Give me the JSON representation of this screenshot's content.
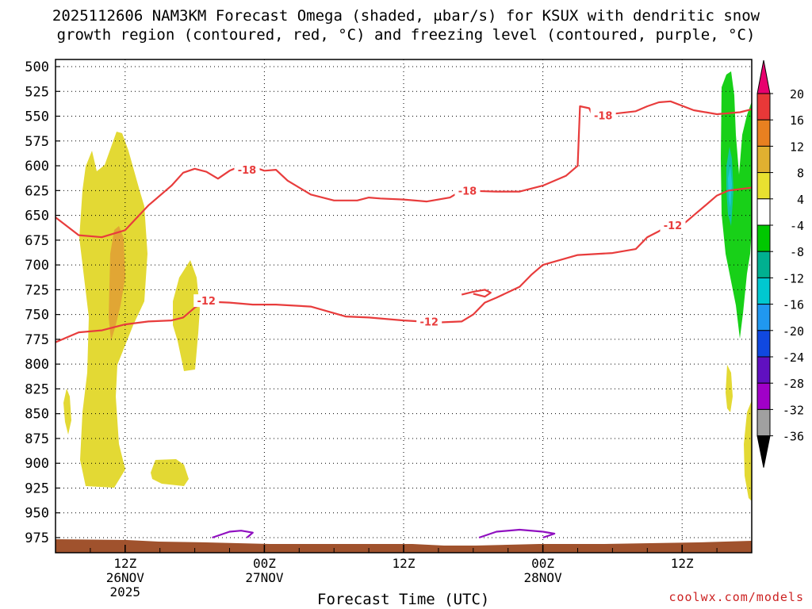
{
  "title_line1": "2025112606 NAM3KM Forecast Omega (shaded, μbar/s) for KSUX with dendritic snow",
  "title_line2": "growth region (contoured, red, °C) and freezing level (contoured, purple, °C)",
  "credit": "coolwx.com/models",
  "chart_data": {
    "type": "contour",
    "xlabel": "Forecast Time (UTC)",
    "ylabel": "",
    "x_unit": "forecast hour",
    "xlim": [
      0,
      60
    ],
    "ylim": [
      1000,
      500
    ],
    "y_scale": "pressure (hPa), inverted",
    "x_ticks": [
      {
        "hour": 6,
        "line1": "12Z",
        "line2": "26NOV",
        "line3": "2025"
      },
      {
        "hour": 18,
        "line1": "00Z",
        "line2": "27NOV",
        "line3": ""
      },
      {
        "hour": 30,
        "line1": "12Z",
        "line2": "",
        "line3": ""
      },
      {
        "hour": 42,
        "line1": "00Z",
        "line2": "28NOV",
        "line3": ""
      },
      {
        "hour": 54,
        "line1": "12Z",
        "line2": "",
        "line3": ""
      }
    ],
    "y_ticks": [
      "500",
      "525",
      "550",
      "575",
      "600",
      "625",
      "650",
      "675",
      "700",
      "725",
      "750",
      "775",
      "800",
      "825",
      "850",
      "875",
      "900",
      "925",
      "950",
      "975"
    ],
    "grid": true,
    "colorbar": {
      "labels": [
        "20",
        "16",
        "12",
        "8",
        "4",
        "-4",
        "-8",
        "-12",
        "-16",
        "-20",
        "-24",
        "-28",
        "-32",
        "-36"
      ],
      "colors": [
        "#e8006e",
        "#e83838",
        "#e88020",
        "#e0b030",
        "#e8e030",
        "#ffffff",
        "#00c800",
        "#00b090",
        "#00c8d0",
        "#2098f0",
        "#1048e0",
        "#6010c0",
        "#a000c8",
        "#a0a0a0",
        "#000000"
      ]
    },
    "contours_red": [
      {
        "label": "-18",
        "points": [
          [
            0,
            652
          ],
          [
            2,
            670
          ],
          [
            4,
            672
          ],
          [
            6,
            665
          ],
          [
            8,
            640
          ],
          [
            10,
            620
          ],
          [
            11,
            607
          ],
          [
            12,
            603
          ],
          [
            13,
            606
          ],
          [
            14,
            613
          ],
          [
            15,
            605
          ],
          [
            16,
            600
          ],
          [
            17,
            601
          ],
          [
            18,
            605
          ],
          [
            19,
            604
          ],
          [
            20,
            615
          ],
          [
            22,
            629
          ],
          [
            24,
            635
          ],
          [
            26,
            635
          ],
          [
            27,
            632
          ],
          [
            28,
            633
          ],
          [
            30,
            634
          ],
          [
            32,
            636
          ],
          [
            34,
            632
          ],
          [
            35,
            625
          ],
          [
            38,
            626
          ],
          [
            40,
            626
          ],
          [
            42,
            620
          ],
          [
            44,
            610
          ],
          [
            45,
            600
          ],
          [
            45.2,
            540
          ],
          [
            46,
            542
          ],
          [
            46.3,
            550
          ],
          [
            47,
            549
          ],
          [
            50,
            545
          ],
          [
            51,
            540
          ],
          [
            52,
            536
          ],
          [
            53,
            535
          ],
          [
            55,
            544
          ],
          [
            57,
            548
          ],
          [
            59,
            546
          ],
          [
            60,
            543
          ]
        ]
      },
      {
        "label": "-12",
        "points": [
          [
            0,
            778
          ],
          [
            2,
            768
          ],
          [
            4,
            766
          ],
          [
            6,
            760
          ],
          [
            8,
            757
          ],
          [
            10,
            756
          ],
          [
            11,
            753
          ],
          [
            12,
            743
          ],
          [
            13,
            737
          ],
          [
            15,
            738
          ],
          [
            17,
            740
          ],
          [
            19,
            740
          ],
          [
            22,
            742
          ],
          [
            25,
            752
          ],
          [
            27,
            753
          ],
          [
            30,
            756
          ],
          [
            33,
            758
          ],
          [
            35,
            757
          ],
          [
            36,
            750
          ],
          [
            37,
            738
          ],
          [
            38,
            733
          ],
          [
            40,
            722
          ],
          [
            41,
            710
          ],
          [
            42,
            700
          ],
          [
            45,
            690
          ],
          [
            48,
            688
          ],
          [
            50,
            684
          ],
          [
            51,
            672
          ],
          [
            52,
            666
          ],
          [
            52.5,
            662
          ],
          [
            53,
            660
          ],
          [
            54,
            660
          ],
          [
            55,
            650
          ],
          [
            56,
            640
          ],
          [
            57,
            630
          ],
          [
            58,
            625
          ],
          [
            60,
            622
          ]
        ]
      },
      {
        "label": "",
        "points": [
          [
            35,
            730
          ],
          [
            36,
            727
          ],
          [
            37,
            725
          ],
          [
            37.5,
            728
          ],
          [
            37,
            732
          ],
          [
            36,
            729
          ]
        ]
      }
    ],
    "contours_purple": [
      {
        "label": "",
        "points": [
          [
            13.5,
            975
          ],
          [
            15,
            969
          ],
          [
            16,
            968
          ],
          [
            17,
            970
          ],
          [
            16.5,
            975
          ]
        ]
      },
      {
        "label": "",
        "points": [
          [
            36.5,
            975
          ],
          [
            38,
            969
          ],
          [
            40,
            967
          ],
          [
            42,
            969
          ],
          [
            43,
            971
          ],
          [
            42,
            975
          ]
        ]
      }
    ]
  }
}
